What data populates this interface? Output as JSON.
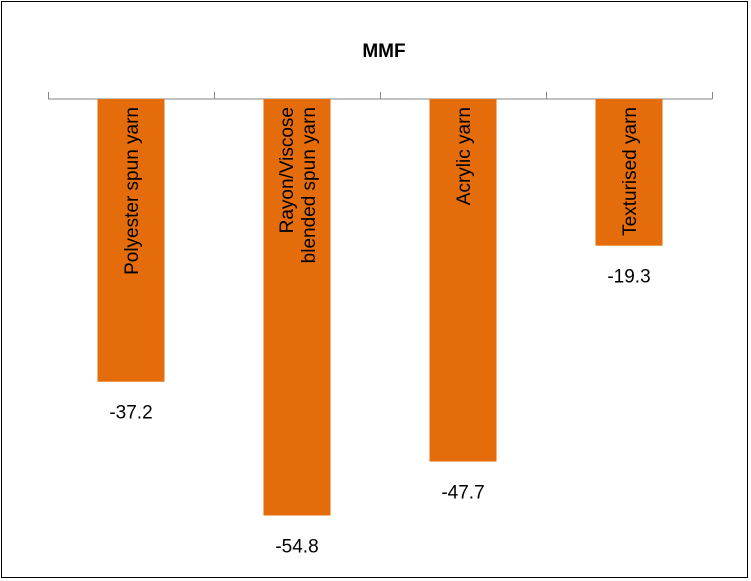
{
  "colors": {
    "bar": "#e46c0a",
    "axis": "#868686"
  },
  "chart_data": {
    "type": "bar",
    "title": "MMF",
    "categories": [
      [
        "Polyester spun yarn"
      ],
      [
        "Rayon/Viscose",
        "blended spun yarn"
      ],
      [
        "Acrylic yarn"
      ],
      [
        "Texturised yarn"
      ]
    ],
    "values": [
      -37.2,
      -54.8,
      -47.7,
      -19.3
    ],
    "value_labels": [
      "-37.2",
      "-54.8",
      "-47.7",
      "-19.3"
    ],
    "ylim": [
      -60,
      0
    ],
    "xlabel": "",
    "ylabel": "",
    "grid": false,
    "legend": "none",
    "category_label_orientation": "vertical, inside bars"
  }
}
